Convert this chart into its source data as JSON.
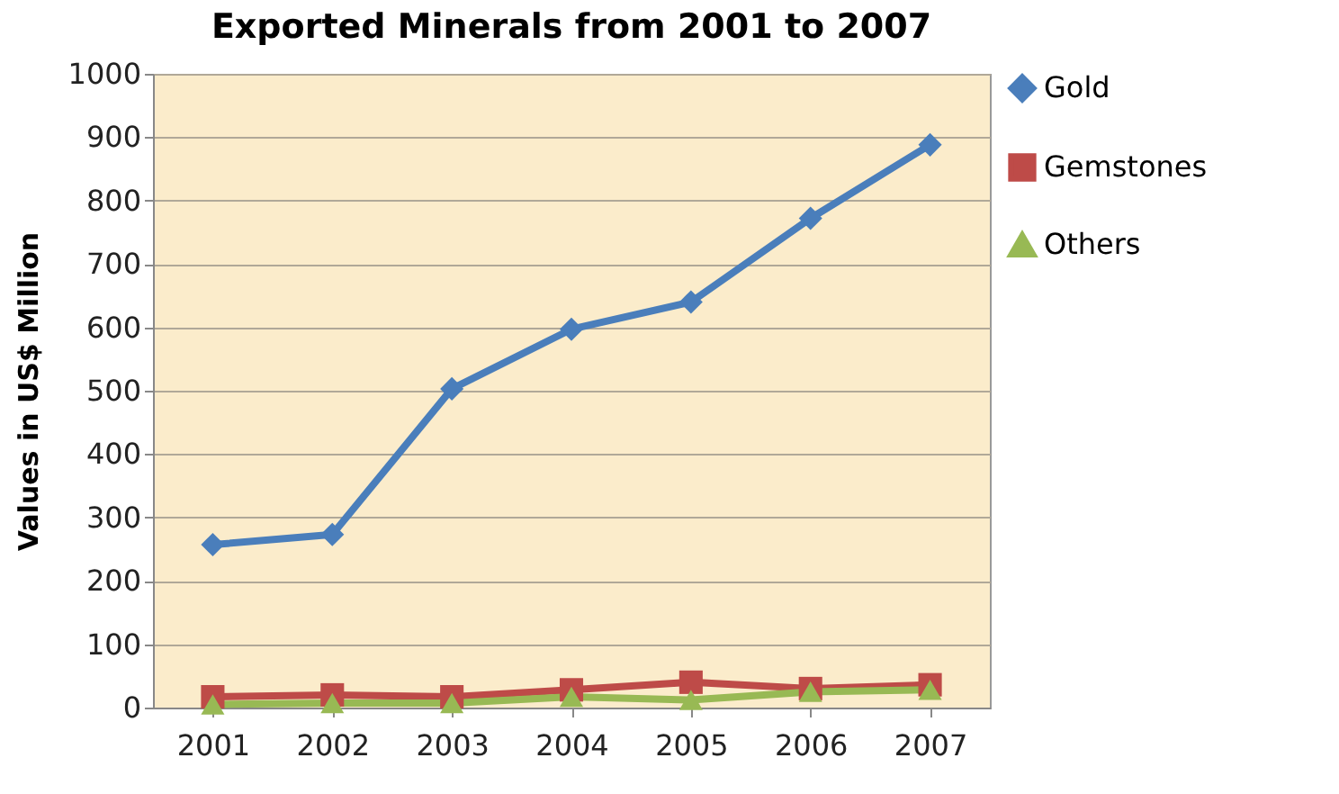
{
  "chart_data": {
    "type": "line",
    "title": "Exported Minerals from 2001 to 2007",
    "ylabel": "Values in US$ Million",
    "categories": [
      "2001",
      "2002",
      "2003",
      "2004",
      "2005",
      "2006",
      "2007"
    ],
    "series": [
      {
        "name": "Gold",
        "color": "#4a7ebb",
        "marker": "diamond",
        "values": [
          257,
          273,
          503,
          597,
          640,
          772,
          888
        ]
      },
      {
        "name": "Gemstones",
        "color": "#be4b48",
        "marker": "square",
        "values": [
          17,
          20,
          17,
          28,
          40,
          30,
          36
        ]
      },
      {
        "name": "Others",
        "color": "#98b954",
        "marker": "triangle",
        "values": [
          5,
          7,
          7,
          17,
          12,
          25,
          28
        ]
      }
    ],
    "ylim": [
      0,
      1000
    ],
    "yticks": [
      0,
      100,
      200,
      300,
      400,
      500,
      600,
      700,
      800,
      900,
      1000
    ],
    "grid": "y",
    "legend": "right",
    "line_style": "solid"
  }
}
